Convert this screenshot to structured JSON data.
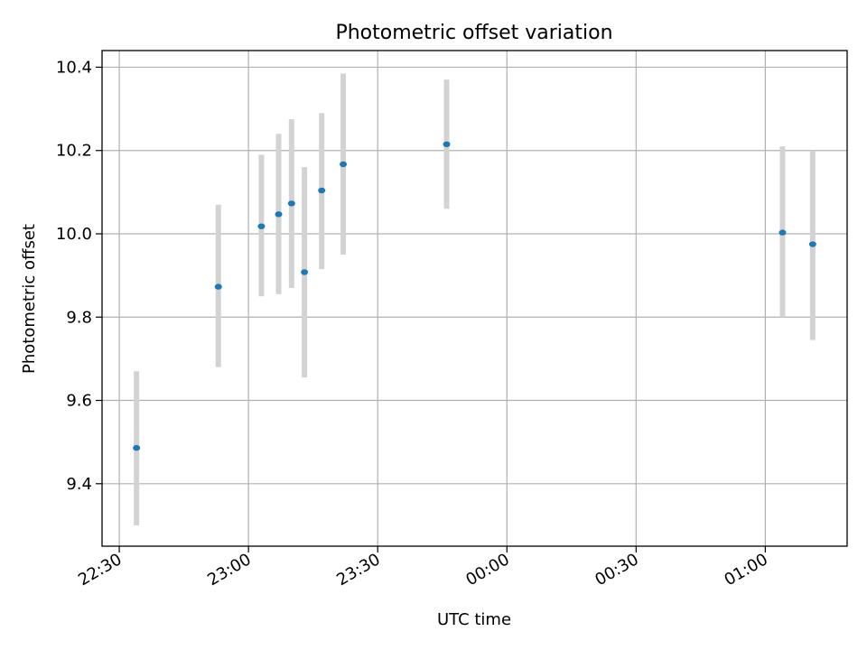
{
  "chart_data": {
    "type": "scatter",
    "title": "Photometric offset variation",
    "xlabel": "UTC time",
    "ylabel": "Photometric offset",
    "x_axis_type": "time",
    "xlim": [
      "22:26",
      "01:19"
    ],
    "ylim": [
      9.25,
      10.44
    ],
    "xticks": [
      "22:30",
      "23:00",
      "23:30",
      "00:00",
      "00:30",
      "01:00"
    ],
    "yticks": [
      9.4,
      9.6,
      9.8,
      10.0,
      10.2,
      10.4
    ],
    "grid": true,
    "legend": "none",
    "marker_color": "#1f77b4",
    "errorbar_color": "#d3d3d3",
    "points": [
      {
        "x": "22:34",
        "y": 9.486,
        "y_low": 9.3,
        "y_high": 9.67
      },
      {
        "x": "22:53",
        "y": 9.873,
        "y_low": 9.68,
        "y_high": 10.07
      },
      {
        "x": "23:03",
        "y": 10.018,
        "y_low": 9.85,
        "y_high": 10.19
      },
      {
        "x": "23:07",
        "y": 10.047,
        "y_low": 9.855,
        "y_high": 10.24
      },
      {
        "x": "23:10",
        "y": 10.073,
        "y_low": 9.87,
        "y_high": 10.275
      },
      {
        "x": "23:13",
        "y": 9.908,
        "y_low": 9.655,
        "y_high": 10.16
      },
      {
        "x": "23:17",
        "y": 10.104,
        "y_low": 9.915,
        "y_high": 10.29
      },
      {
        "x": "23:22",
        "y": 10.167,
        "y_low": 9.95,
        "y_high": 10.385
      },
      {
        "x": "23:46",
        "y": 10.215,
        "y_low": 10.06,
        "y_high": 10.37
      },
      {
        "x": "01:04",
        "y": 10.003,
        "y_low": 9.8,
        "y_high": 10.21
      },
      {
        "x": "01:11",
        "y": 9.975,
        "y_low": 9.745,
        "y_high": 10.2
      }
    ]
  }
}
